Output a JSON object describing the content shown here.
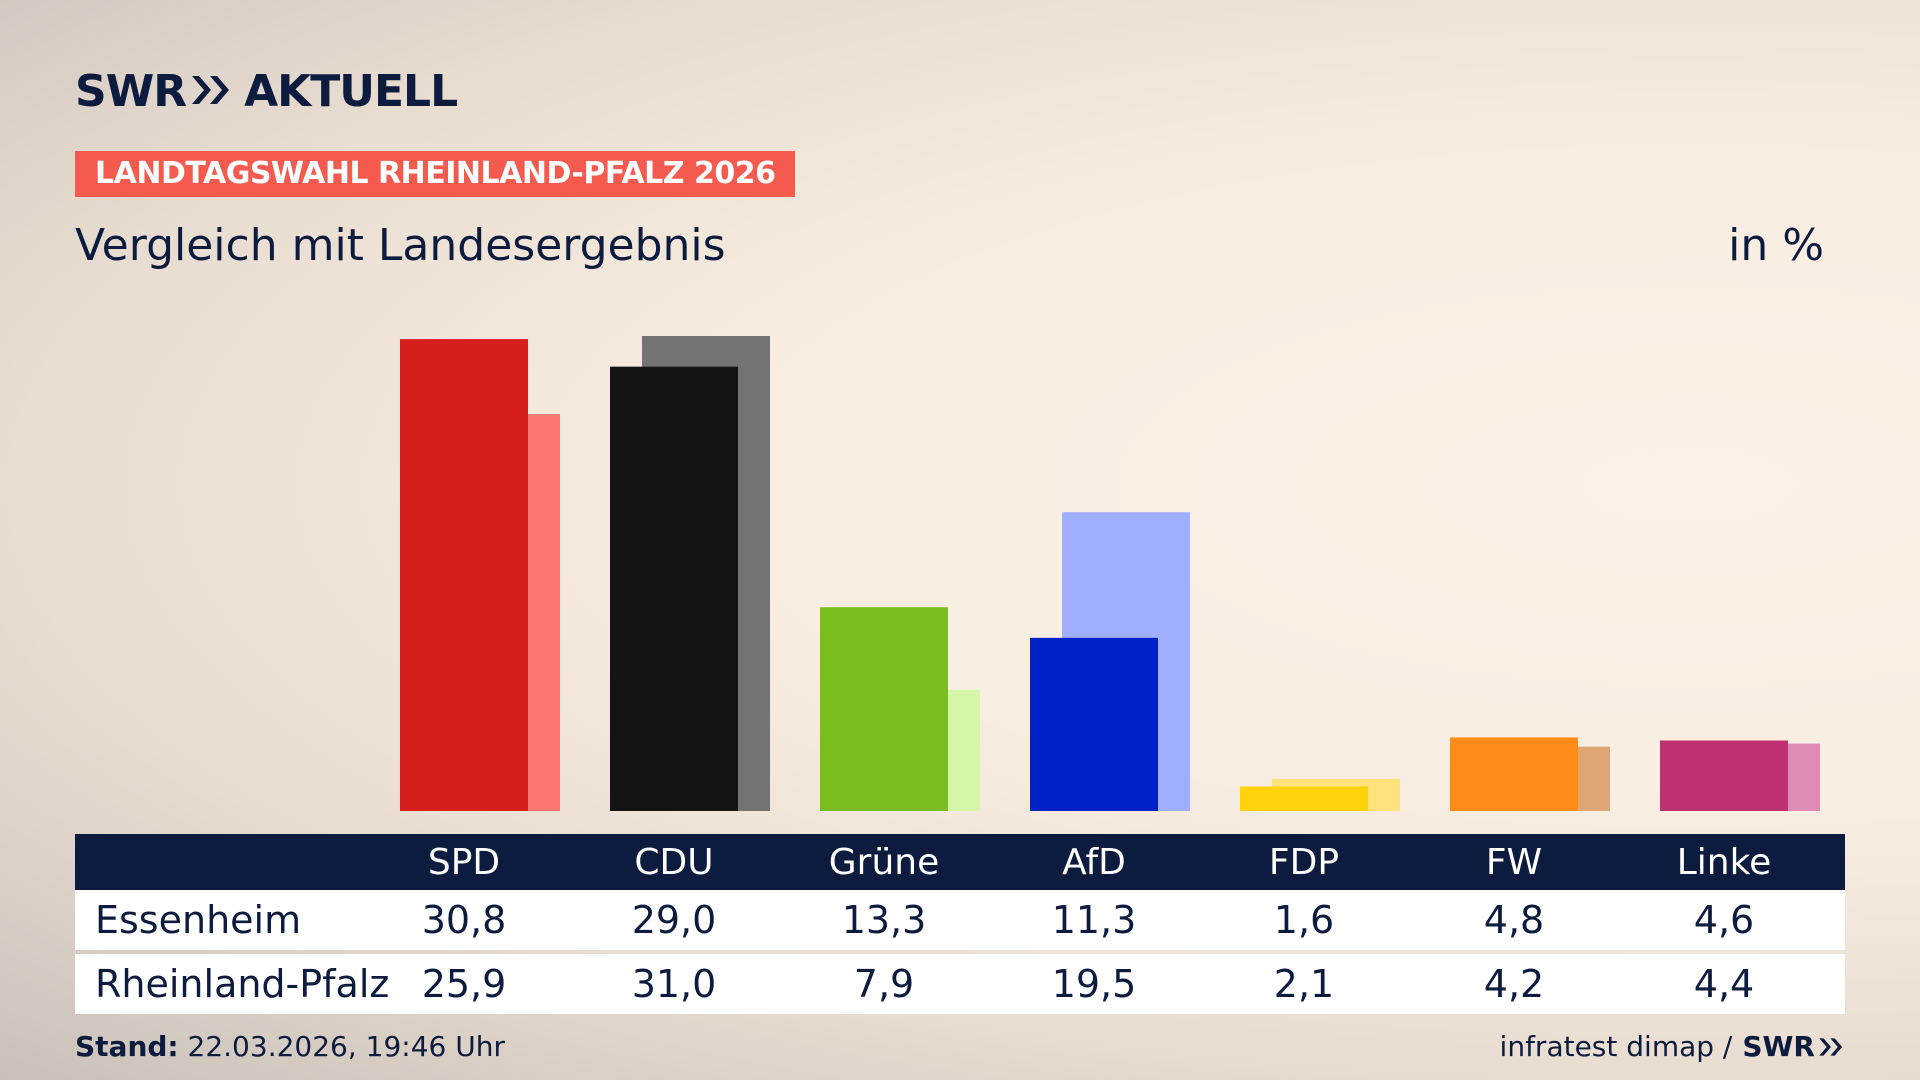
{
  "header": {
    "logo_left": "SWR",
    "logo_right": "AKTUELL",
    "kicker": "LANDTAGSWAHL RHEINLAND-PFALZ 2026",
    "subtitle": "Vergleich mit Landesergebnis",
    "unit": "in %"
  },
  "footer": {
    "stand_label": "Stand:",
    "stand_value": "22.03.2026, 19:46 Uhr",
    "source": "infratest dimap /",
    "source_logo": "SWR"
  },
  "colors": {
    "navy": "#0d1b3e",
    "kicker": "#f55a4e"
  },
  "chart_data": {
    "type": "bar",
    "categories": [
      "SPD",
      "CDU",
      "Grüne",
      "AfD",
      "FDP",
      "FW",
      "Linke"
    ],
    "series": [
      {
        "name": "Essenheim",
        "values": [
          30.8,
          29.0,
          13.3,
          11.3,
          1.6,
          4.8,
          4.6
        ],
        "colors": [
          "#d71f1f",
          "#141414",
          "#7abd1e",
          "#0020c8",
          "#ffd20a",
          "#ff8c18",
          "#bf3070"
        ]
      },
      {
        "name": "Rheinland-Pfalz",
        "values": [
          25.9,
          31.0,
          7.9,
          19.5,
          2.1,
          4.2,
          4.4
        ],
        "colors": [
          "#ff7670",
          "#737373",
          "#d6f7aa",
          "#a0aefe",
          "#ffe37a",
          "#dea674",
          "#de8bb5"
        ]
      }
    ],
    "value_labels": [
      [
        "30,8",
        "29,0",
        "13,3",
        "11,3",
        "1,6",
        "4,8",
        "4,6"
      ],
      [
        "25,9",
        "31,0",
        "7,9",
        "19,5",
        "2,1",
        "4,2",
        "4,4"
      ]
    ],
    "ylim": [
      0,
      31
    ]
  }
}
